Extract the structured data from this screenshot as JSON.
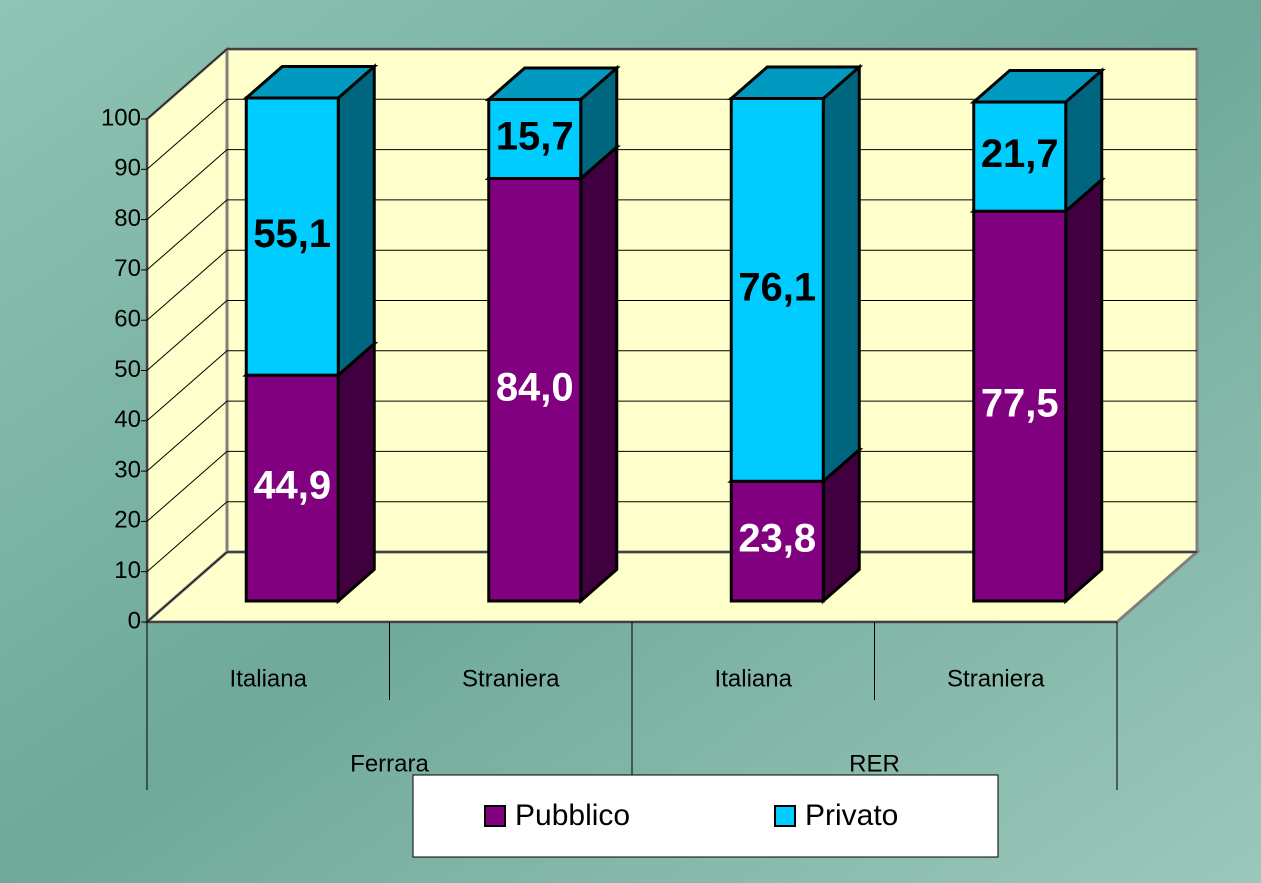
{
  "chart_data": {
    "type": "bar3d_stacked",
    "categories": [
      "Italiana",
      "Straniera",
      "Italiana",
      "Straniera"
    ],
    "groups": [
      "Ferrara",
      "RER"
    ],
    "series": [
      {
        "name": "Pubblico",
        "color": "#800080",
        "values": [
          44.9,
          84.0,
          23.8,
          77.5
        ],
        "value_labels": [
          "44,9",
          "84,0",
          "23,8",
          "77,5"
        ]
      },
      {
        "name": "Privato",
        "color": "#00ccff",
        "values": [
          55.1,
          15.7,
          76.1,
          21.7
        ],
        "value_labels": [
          "55,1",
          "15,7",
          "76,1",
          "21,7"
        ]
      }
    ],
    "ylim": [
      0,
      100
    ],
    "yticks": [
      0,
      10,
      20,
      30,
      40,
      50,
      60,
      70,
      80,
      90,
      100
    ],
    "grid": true,
    "legend": "bottom"
  }
}
